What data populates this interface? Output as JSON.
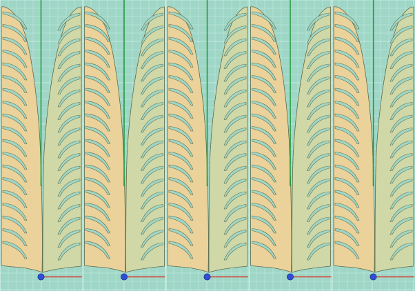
{
  "viewport": {
    "view_name": "",
    "colors": {
      "background": "#9fd6c6",
      "grid_line": "#b3e2d6",
      "grid_major": "#c6ebe1",
      "left_panel_fill": "#ead29a",
      "right_panel_fill": "#cfd8a6",
      "outline": "#5e6a4a",
      "slot_fill": "#9fd6c6",
      "y_axis": "#1e9a3c",
      "x_axis": "#d83a2a",
      "origin_marker": "#2f4fd6",
      "tile_seam": "#ffffff"
    },
    "tile_count": 5,
    "slots_per_panel": 19,
    "icons": [
      "origin-marker-icon",
      "x-axis-icon",
      "y-axis-icon"
    ]
  }
}
